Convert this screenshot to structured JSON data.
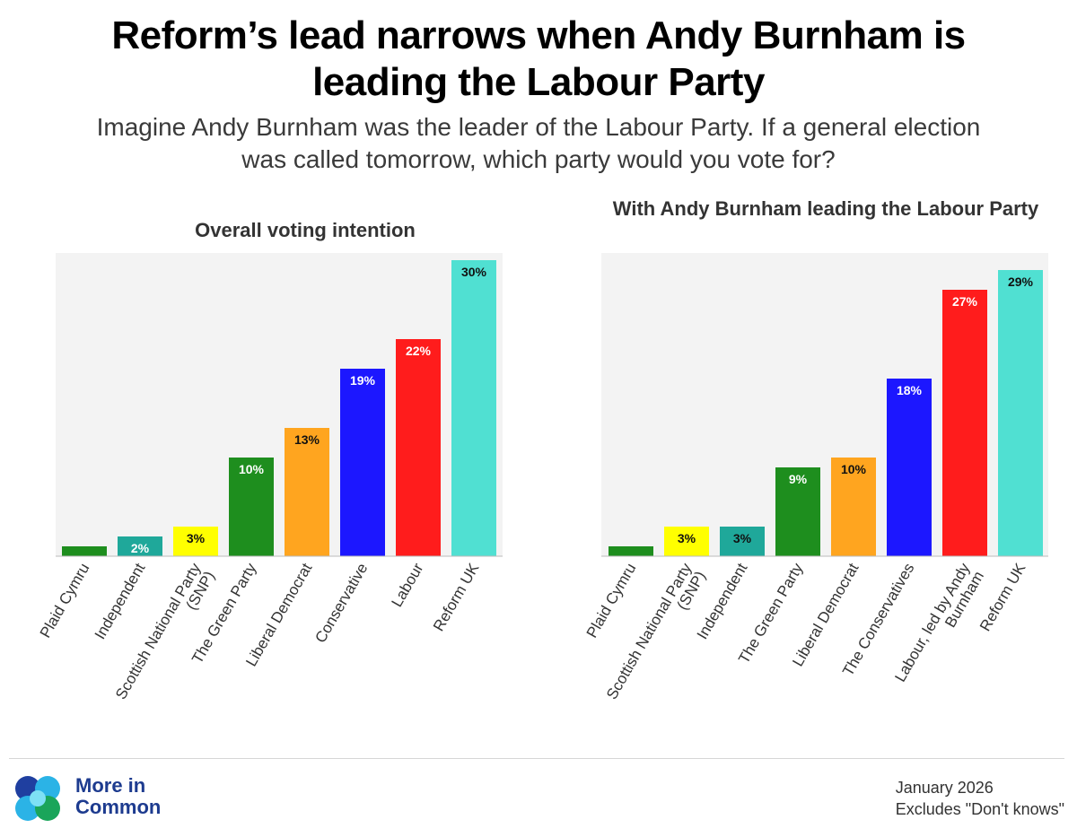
{
  "title_line1": "Reform’s lead narrows when Andy Burnham is",
  "title_line2": "leading the Labour Party",
  "subtitle_line1": "Imagine Andy Burnham was the leader of the Labour Party. If a general election",
  "subtitle_line2": "was called tomorrow, which party would you vote for?",
  "brand": {
    "line1": "More in",
    "line2": "Common"
  },
  "notes": {
    "date": "January 2026",
    "excludes": "Excludes \"Don't knows\""
  },
  "colors": {
    "plaid": "#1e8e1e",
    "independent": "#1fa89a",
    "snp": "#ffff00",
    "green": "#1e8e1e",
    "libdem": "#ffa51f",
    "conservative": "#1c17ff",
    "labour": "#ff1c1c",
    "reform": "#50e0d2",
    "panel": "#f3f3f3"
  },
  "chart_data": [
    {
      "type": "bar",
      "title": "Overall voting intention",
      "ylim": [
        0,
        30
      ],
      "categories": [
        "Plaid Cymru",
        "Independent",
        "Scottish National Party (SNP)",
        "The Green Party",
        "Liberal Democrat",
        "Conservative",
        "Labour",
        "Reform UK"
      ],
      "tick_lines": [
        [
          "Plaid Cymru"
        ],
        [
          "Independent"
        ],
        [
          "Scottish National Party",
          "(SNP)"
        ],
        [
          "The Green Party"
        ],
        [
          "Liberal Democrat"
        ],
        [
          "Conservative"
        ],
        [
          "Labour"
        ],
        [
          "Reform UK"
        ]
      ],
      "values": [
        1,
        2,
        3,
        10,
        13,
        19,
        22,
        30
      ],
      "labels": [
        "",
        "2%",
        "3%",
        "10%",
        "13%",
        "19%",
        "22%",
        "30%"
      ],
      "colors": [
        "#1e8e1e",
        "#1fa89a",
        "#ffff00",
        "#1e8e1e",
        "#ffa51f",
        "#1c17ff",
        "#ff1c1c",
        "#50e0d2"
      ],
      "label_colors": [
        "#ffffff",
        "#ffffff",
        "#111111",
        "#ffffff",
        "#111111",
        "#ffffff",
        "#ffffff",
        "#111111"
      ]
    },
    {
      "type": "bar",
      "title": "With Andy Burnham leading the Labour Party",
      "ylim": [
        0,
        30
      ],
      "categories": [
        "Plaid Cymru",
        "Scottish National Party (SNP)",
        "Independent",
        "The Green Party",
        "Liberal Democrat",
        "The Conservatives",
        "Labour, led by Andy Burnham",
        "Reform UK"
      ],
      "tick_lines": [
        [
          "Plaid Cymru"
        ],
        [
          "Scottish National Party",
          "(SNP)"
        ],
        [
          "Independent"
        ],
        [
          "The Green Party"
        ],
        [
          "Liberal Democrat"
        ],
        [
          "The Conservatives"
        ],
        [
          "Labour, led by Andy",
          "Burnham"
        ],
        [
          "Reform UK"
        ]
      ],
      "values": [
        1,
        3,
        3,
        9,
        10,
        18,
        27,
        29
      ],
      "labels": [
        "",
        "3%",
        "3%",
        "9%",
        "10%",
        "18%",
        "27%",
        "29%"
      ],
      "colors": [
        "#1e8e1e",
        "#ffff00",
        "#1fa89a",
        "#1e8e1e",
        "#ffa51f",
        "#1c17ff",
        "#ff1c1c",
        "#50e0d2"
      ],
      "label_colors": [
        "#ffffff",
        "#111111",
        "#111111",
        "#ffffff",
        "#111111",
        "#ffffff",
        "#ffffff",
        "#111111"
      ]
    }
  ]
}
